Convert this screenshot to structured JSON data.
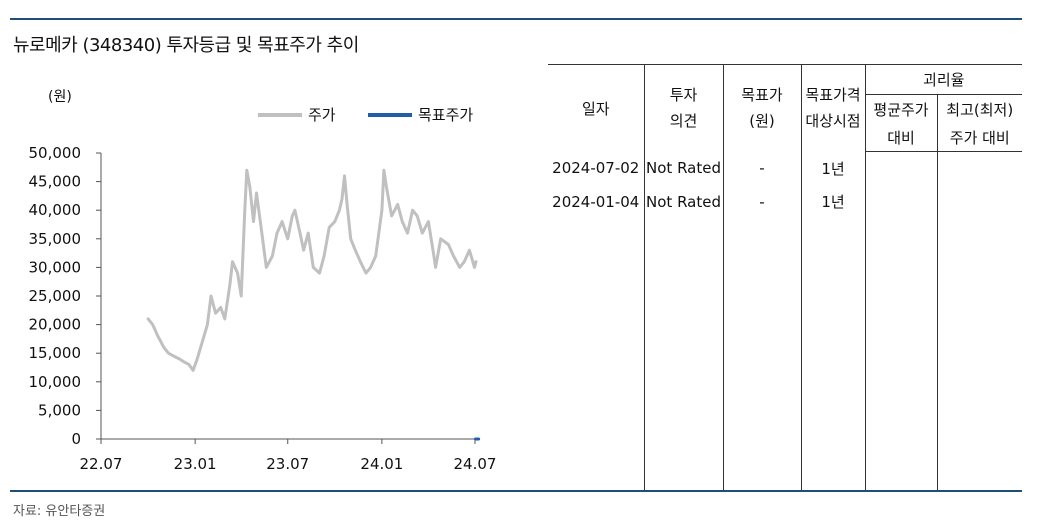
{
  "title": "뉴로메카 (348340) 투자등급 및 목표주가 추이",
  "source": "자료: 유안타증권",
  "chart_data": {
    "type": "line",
    "ylabel": "(원)",
    "yticks": [
      "50,000",
      "45,000",
      "40,000",
      "35,000",
      "30,000",
      "25,000",
      "20,000",
      "15,000",
      "10,000",
      "5,000",
      "0"
    ],
    "ylim": [
      0,
      50000
    ],
    "xticks": [
      "22.07",
      "23.01",
      "23.07",
      "24.01",
      "24.07"
    ],
    "legend_position": "top-right",
    "colors": {
      "price": "#c0c0c0",
      "target": "#1f5fa8"
    },
    "series": [
      {
        "name": "주가",
        "key": "price",
        "points": [
          [
            "2022-10-01",
            21000
          ],
          [
            "2022-10-10",
            20000
          ],
          [
            "2022-10-20",
            18000
          ],
          [
            "2022-11-01",
            16000
          ],
          [
            "2022-11-10",
            15000
          ],
          [
            "2022-11-20",
            14500
          ],
          [
            "2022-12-01",
            14000
          ],
          [
            "2022-12-10",
            13500
          ],
          [
            "2022-12-20",
            13000
          ],
          [
            "2022-12-28",
            12000
          ],
          [
            "2023-01-05",
            14000
          ],
          [
            "2023-01-15",
            17000
          ],
          [
            "2023-01-25",
            20000
          ],
          [
            "2023-02-01",
            25000
          ],
          [
            "2023-02-10",
            22000
          ],
          [
            "2023-02-20",
            23000
          ],
          [
            "2023-02-28",
            21000
          ],
          [
            "2023-03-10",
            27000
          ],
          [
            "2023-03-15",
            31000
          ],
          [
            "2023-03-25",
            29000
          ],
          [
            "2023-04-01",
            25000
          ],
          [
            "2023-04-08",
            40000
          ],
          [
            "2023-04-12",
            47000
          ],
          [
            "2023-04-18",
            44000
          ],
          [
            "2023-04-25",
            38000
          ],
          [
            "2023-05-01",
            43000
          ],
          [
            "2023-05-10",
            37000
          ],
          [
            "2023-05-20",
            30000
          ],
          [
            "2023-06-01",
            32000
          ],
          [
            "2023-06-10",
            36000
          ],
          [
            "2023-06-20",
            38000
          ],
          [
            "2023-07-01",
            35000
          ],
          [
            "2023-07-10",
            39000
          ],
          [
            "2023-07-15",
            40000
          ],
          [
            "2023-07-25",
            36000
          ],
          [
            "2023-08-01",
            33000
          ],
          [
            "2023-08-10",
            36000
          ],
          [
            "2023-08-20",
            30000
          ],
          [
            "2023-09-01",
            29000
          ],
          [
            "2023-09-10",
            32000
          ],
          [
            "2023-09-20",
            37000
          ],
          [
            "2023-10-01",
            38000
          ],
          [
            "2023-10-10",
            40000
          ],
          [
            "2023-10-15",
            42000
          ],
          [
            "2023-10-20",
            46000
          ],
          [
            "2023-10-25",
            41000
          ],
          [
            "2023-11-01",
            35000
          ],
          [
            "2023-11-10",
            33000
          ],
          [
            "2023-11-20",
            31000
          ],
          [
            "2023-12-01",
            29000
          ],
          [
            "2023-12-10",
            30000
          ],
          [
            "2023-12-20",
            32000
          ],
          [
            "2024-01-01",
            40000
          ],
          [
            "2024-01-05",
            47000
          ],
          [
            "2024-01-10",
            44000
          ],
          [
            "2024-01-20",
            39000
          ],
          [
            "2024-02-01",
            41000
          ],
          [
            "2024-02-10",
            38000
          ],
          [
            "2024-02-20",
            36000
          ],
          [
            "2024-03-01",
            40000
          ],
          [
            "2024-03-10",
            39000
          ],
          [
            "2024-03-20",
            36000
          ],
          [
            "2024-04-01",
            38000
          ],
          [
            "2024-04-10",
            33000
          ],
          [
            "2024-04-15",
            30000
          ],
          [
            "2024-04-25",
            35000
          ],
          [
            "2024-05-10",
            34000
          ],
          [
            "2024-05-20",
            32000
          ],
          [
            "2024-06-01",
            30000
          ],
          [
            "2024-06-10",
            31000
          ],
          [
            "2024-06-20",
            33000
          ],
          [
            "2024-06-30",
            30000
          ],
          [
            "2024-07-03",
            31000
          ]
        ]
      },
      {
        "name": "목표주가",
        "key": "target",
        "points": [
          [
            "2024-07-02",
            0
          ],
          [
            "2024-07-08",
            0
          ]
        ]
      }
    ]
  },
  "table": {
    "headers": {
      "date": [
        "일자"
      ],
      "rating": [
        "투자",
        "의견"
      ],
      "target": [
        "목표가",
        "(원)"
      ],
      "basis": [
        "목표가격",
        "대상시점"
      ],
      "gap": "괴리율",
      "avg": [
        "평균주가",
        "대비"
      ],
      "extreme": [
        "최고(최저)",
        "주가 대비"
      ]
    },
    "rows": [
      {
        "date": "2024-07-02",
        "rating": "Not Rated",
        "target": "-",
        "basis": "1년",
        "avg": "",
        "extreme": ""
      },
      {
        "date": "2024-01-04",
        "rating": "Not Rated",
        "target": "-",
        "basis": "1년",
        "avg": "",
        "extreme": ""
      }
    ]
  }
}
